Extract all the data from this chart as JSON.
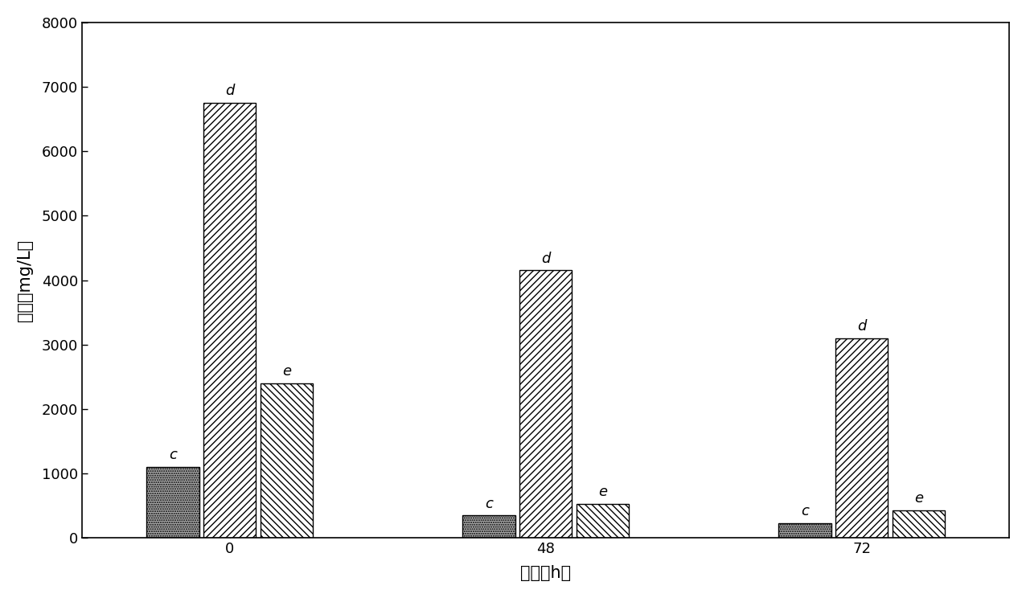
{
  "groups": [
    "0",
    "48",
    "72"
  ],
  "bar_c_values": [
    1100,
    350,
    230
  ],
  "bar_d_values": [
    6750,
    4150,
    3100
  ],
  "bar_e_values": [
    2400,
    530,
    430
  ],
  "xlabel": "时间（h）",
  "ylabel": "浓度（mg/L）",
  "ylim": [
    0,
    8000
  ],
  "yticks": [
    0,
    1000,
    2000,
    3000,
    4000,
    5000,
    6000,
    7000,
    8000
  ],
  "bar_width": 0.25,
  "background_color": "#ffffff",
  "bar_edge_color": "#000000",
  "label_c": "c",
  "label_d": "d",
  "label_e": "e",
  "fontsize_axis_label": 15,
  "fontsize_tick": 13,
  "fontsize_bar_label": 13
}
